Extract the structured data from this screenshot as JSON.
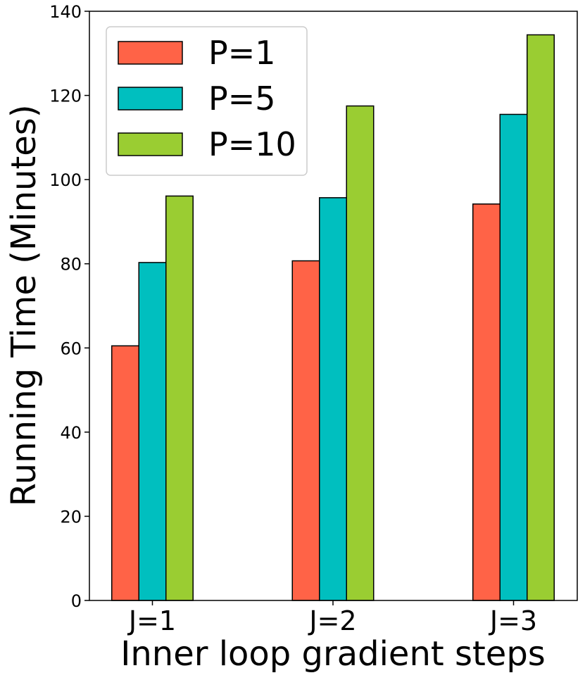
{
  "chart_data": {
    "type": "bar",
    "title": "",
    "xlabel": "Inner loop gradient steps",
    "ylabel": "Running Time (Minutes)",
    "categories": [
      "J=1",
      "J=2",
      "J=3"
    ],
    "series": [
      {
        "name": "P=1",
        "color": "#FF6347",
        "values": [
          60.5,
          80.7,
          94.2
        ]
      },
      {
        "name": "P=5",
        "color": "#00BFBF",
        "values": [
          80.3,
          95.7,
          115.5
        ]
      },
      {
        "name": "P=10",
        "color": "#9ACD32",
        "values": [
          96.1,
          117.5,
          134.4
        ]
      }
    ],
    "ylim": [
      0,
      140
    ],
    "yticks": [
      0,
      20,
      40,
      60,
      80,
      100,
      120,
      140
    ],
    "grid": false,
    "legend_position": "top-left"
  }
}
